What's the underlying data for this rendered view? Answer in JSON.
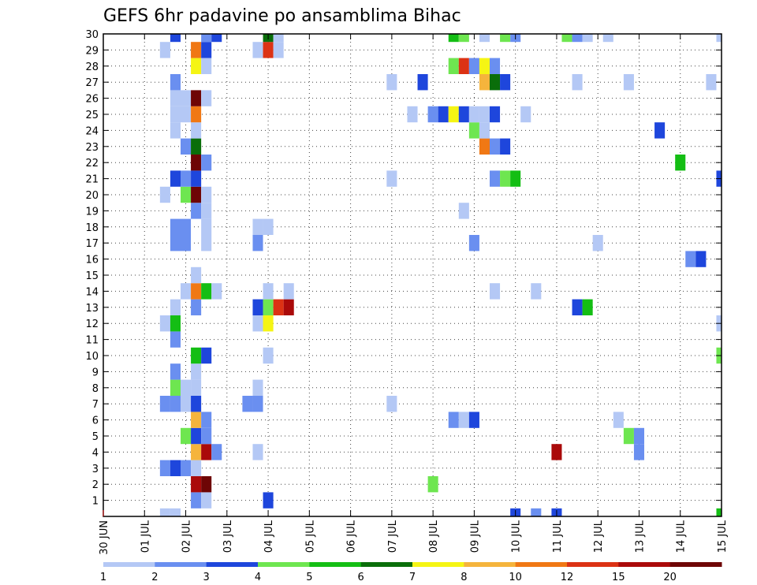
{
  "chart_data": {
    "type": "heatmap",
    "title": "GEFS 6hr padavine po ansamblima Bihac",
    "xlabel": "",
    "ylabel": "",
    "x_tick_labels": [
      "30 JUN",
      "01 JUL",
      "02 JUL",
      "03 JUL",
      "04 JUL",
      "05 JUL",
      "06 JUL",
      "07 JUL",
      "08 JUL",
      "09 JUL",
      "10 JUL",
      "11 JUL",
      "12 JUL",
      "13 JUL",
      "14 JUL",
      "15 JUL"
    ],
    "y_tick_labels": [
      "1",
      "2",
      "3",
      "4",
      "5",
      "6",
      "7",
      "8",
      "9",
      "10",
      "11",
      "12",
      "13",
      "14",
      "15",
      "16",
      "17",
      "18",
      "19",
      "20",
      "21",
      "22",
      "23",
      "24",
      "25",
      "26",
      "27",
      "28",
      "29",
      "30"
    ],
    "x_range_days": [
      0,
      15
    ],
    "members_range": [
      0,
      30
    ],
    "step_hours": 6,
    "grid": true,
    "colorbar": {
      "levels": [
        "1",
        "2",
        "3",
        "4",
        "5",
        "6",
        "7",
        "8",
        "10",
        "12",
        "15",
        "20"
      ],
      "colors": [
        "#b4c8f5",
        "#6a8ff0",
        "#1e46dc",
        "#6ee650",
        "#14be14",
        "#0a6e0a",
        "#f5f514",
        "#f5b43c",
        "#f07814",
        "#dc3214",
        "#aa0a0a",
        "#6e0505"
      ]
    },
    "cells": [
      {
        "t": 1.5,
        "m": 0,
        "c": 1
      },
      {
        "t": 1.75,
        "m": 0,
        "c": 1
      },
      {
        "t": 10.0,
        "m": 0,
        "c": 3
      },
      {
        "t": 10.5,
        "m": 0,
        "c": 2
      },
      {
        "t": 11.0,
        "m": 0,
        "c": 3
      },
      {
        "t": 15.0,
        "m": 0,
        "c": 5
      },
      {
        "t": 2.25,
        "m": 1,
        "c": 2
      },
      {
        "t": 2.5,
        "m": 1,
        "c": 1
      },
      {
        "t": 4.0,
        "m": 1,
        "c": 3
      },
      {
        "t": 2.25,
        "m": 2,
        "c": 11
      },
      {
        "t": 2.5,
        "m": 2,
        "c": 12
      },
      {
        "t": 8.0,
        "m": 2,
        "c": 4
      },
      {
        "t": 1.5,
        "m": 3,
        "c": 2
      },
      {
        "t": 1.75,
        "m": 3,
        "c": 3
      },
      {
        "t": 2.0,
        "m": 3,
        "c": 2
      },
      {
        "t": 2.25,
        "m": 3,
        "c": 1
      },
      {
        "t": 2.25,
        "m": 4,
        "c": 8
      },
      {
        "t": 2.5,
        "m": 4,
        "c": 11
      },
      {
        "t": 2.75,
        "m": 4,
        "c": 2
      },
      {
        "t": 3.75,
        "m": 4,
        "c": 1
      },
      {
        "t": 11.0,
        "m": 4,
        "c": 11
      },
      {
        "t": 13.0,
        "m": 4,
        "c": 2
      },
      {
        "t": 2.0,
        "m": 5,
        "c": 4
      },
      {
        "t": 2.25,
        "m": 5,
        "c": 3
      },
      {
        "t": 2.5,
        "m": 5,
        "c": 2
      },
      {
        "t": 12.75,
        "m": 5,
        "c": 4
      },
      {
        "t": 13.0,
        "m": 5,
        "c": 2
      },
      {
        "t": 2.25,
        "m": 6,
        "c": 8
      },
      {
        "t": 2.5,
        "m": 6,
        "c": 2
      },
      {
        "t": 8.5,
        "m": 6,
        "c": 2
      },
      {
        "t": 8.75,
        "m": 6,
        "c": 1
      },
      {
        "t": 9.0,
        "m": 6,
        "c": 3
      },
      {
        "t": 12.5,
        "m": 6,
        "c": 1
      },
      {
        "t": 1.5,
        "m": 7,
        "c": 2
      },
      {
        "t": 1.75,
        "m": 7,
        "c": 2
      },
      {
        "t": 2.0,
        "m": 7,
        "c": 1
      },
      {
        "t": 2.25,
        "m": 7,
        "c": 3
      },
      {
        "t": 3.5,
        "m": 7,
        "c": 2
      },
      {
        "t": 3.75,
        "m": 7,
        "c": 2
      },
      {
        "t": 7.0,
        "m": 7,
        "c": 1
      },
      {
        "t": 1.75,
        "m": 8,
        "c": 4
      },
      {
        "t": 2.0,
        "m": 8,
        "c": 1
      },
      {
        "t": 2.25,
        "m": 8,
        "c": 1
      },
      {
        "t": 3.75,
        "m": 8,
        "c": 1
      },
      {
        "t": 1.75,
        "m": 9,
        "c": 2
      },
      {
        "t": 2.25,
        "m": 9,
        "c": 1
      },
      {
        "t": 2.25,
        "m": 10,
        "c": 5
      },
      {
        "t": 2.5,
        "m": 10,
        "c": 3
      },
      {
        "t": 4.0,
        "m": 10,
        "c": 1
      },
      {
        "t": 15.0,
        "m": 10,
        "c": 4
      },
      {
        "t": 1.75,
        "m": 11,
        "c": 2
      },
      {
        "t": 1.5,
        "m": 12,
        "c": 1
      },
      {
        "t": 1.75,
        "m": 12,
        "c": 5
      },
      {
        "t": 3.75,
        "m": 12,
        "c": 1
      },
      {
        "t": 4.0,
        "m": 12,
        "c": 7
      },
      {
        "t": 15.0,
        "m": 12,
        "c": 1
      },
      {
        "t": 1.75,
        "m": 13,
        "c": 1
      },
      {
        "t": 2.25,
        "m": 13,
        "c": 2
      },
      {
        "t": 3.75,
        "m": 13,
        "c": 3
      },
      {
        "t": 4.0,
        "m": 13,
        "c": 4
      },
      {
        "t": 4.25,
        "m": 13,
        "c": 10
      },
      {
        "t": 4.5,
        "m": 13,
        "c": 11
      },
      {
        "t": 11.5,
        "m": 13,
        "c": 3
      },
      {
        "t": 11.75,
        "m": 13,
        "c": 5
      },
      {
        "t": 2.0,
        "m": 14,
        "c": 1
      },
      {
        "t": 2.25,
        "m": 14,
        "c": 9
      },
      {
        "t": 2.5,
        "m": 14,
        "c": 5
      },
      {
        "t": 2.75,
        "m": 14,
        "c": 1
      },
      {
        "t": 4.0,
        "m": 14,
        "c": 1
      },
      {
        "t": 4.5,
        "m": 14,
        "c": 1
      },
      {
        "t": 9.5,
        "m": 14,
        "c": 1
      },
      {
        "t": 10.5,
        "m": 14,
        "c": 1
      },
      {
        "t": 2.25,
        "m": 15,
        "c": 1
      },
      {
        "t": 14.25,
        "m": 16,
        "c": 2
      },
      {
        "t": 14.5,
        "m": 16,
        "c": 3
      },
      {
        "t": 1.75,
        "m": 17,
        "c": 2
      },
      {
        "t": 2.0,
        "m": 17,
        "c": 2
      },
      {
        "t": 2.5,
        "m": 17,
        "c": 1
      },
      {
        "t": 3.75,
        "m": 17,
        "c": 2
      },
      {
        "t": 9.0,
        "m": 17,
        "c": 2
      },
      {
        "t": 12.0,
        "m": 17,
        "c": 1
      },
      {
        "t": 1.75,
        "m": 18,
        "c": 2
      },
      {
        "t": 2.0,
        "m": 18,
        "c": 2
      },
      {
        "t": 2.5,
        "m": 18,
        "c": 1
      },
      {
        "t": 3.75,
        "m": 18,
        "c": 1
      },
      {
        "t": 4.0,
        "m": 18,
        "c": 1
      },
      {
        "t": 2.25,
        "m": 19,
        "c": 2
      },
      {
        "t": 2.5,
        "m": 19,
        "c": 1
      },
      {
        "t": 8.75,
        "m": 19,
        "c": 1
      },
      {
        "t": 1.5,
        "m": 20,
        "c": 1
      },
      {
        "t": 2.0,
        "m": 20,
        "c": 4
      },
      {
        "t": 2.25,
        "m": 20,
        "c": 12
      },
      {
        "t": 2.5,
        "m": 20,
        "c": 1
      },
      {
        "t": 1.75,
        "m": 21,
        "c": 3
      },
      {
        "t": 2.0,
        "m": 21,
        "c": 2
      },
      {
        "t": 2.25,
        "m": 21,
        "c": 3
      },
      {
        "t": 7.0,
        "m": 21,
        "c": 1
      },
      {
        "t": 9.5,
        "m": 21,
        "c": 2
      },
      {
        "t": 9.75,
        "m": 21,
        "c": 4
      },
      {
        "t": 10.0,
        "m": 21,
        "c": 5
      },
      {
        "t": 15.0,
        "m": 21,
        "c": 3
      },
      {
        "t": 2.25,
        "m": 22,
        "c": 12
      },
      {
        "t": 2.5,
        "m": 22,
        "c": 2
      },
      {
        "t": 14.0,
        "m": 22,
        "c": 5
      },
      {
        "t": 2.0,
        "m": 23,
        "c": 2
      },
      {
        "t": 2.25,
        "m": 23,
        "c": 6
      },
      {
        "t": 9.25,
        "m": 23,
        "c": 9
      },
      {
        "t": 9.5,
        "m": 23,
        "c": 2
      },
      {
        "t": 9.75,
        "m": 23,
        "c": 3
      },
      {
        "t": 1.75,
        "m": 24,
        "c": 1
      },
      {
        "t": 2.25,
        "m": 24,
        "c": 1
      },
      {
        "t": 9.0,
        "m": 24,
        "c": 4
      },
      {
        "t": 9.25,
        "m": 24,
        "c": 1
      },
      {
        "t": 13.5,
        "m": 24,
        "c": 3
      },
      {
        "t": 1.75,
        "m": 25,
        "c": 1
      },
      {
        "t": 2.0,
        "m": 25,
        "c": 1
      },
      {
        "t": 2.25,
        "m": 25,
        "c": 9
      },
      {
        "t": 7.5,
        "m": 25,
        "c": 1
      },
      {
        "t": 8.0,
        "m": 25,
        "c": 2
      },
      {
        "t": 8.25,
        "m": 25,
        "c": 3
      },
      {
        "t": 8.5,
        "m": 25,
        "c": 7
      },
      {
        "t": 8.75,
        "m": 25,
        "c": 3
      },
      {
        "t": 9.0,
        "m": 25,
        "c": 1
      },
      {
        "t": 9.25,
        "m": 25,
        "c": 1
      },
      {
        "t": 9.5,
        "m": 25,
        "c": 3
      },
      {
        "t": 10.25,
        "m": 25,
        "c": 1
      },
      {
        "t": 1.75,
        "m": 26,
        "c": 1
      },
      {
        "t": 2.0,
        "m": 26,
        "c": 1
      },
      {
        "t": 2.25,
        "m": 26,
        "c": 12
      },
      {
        "t": 2.5,
        "m": 26,
        "c": 1
      },
      {
        "t": 1.75,
        "m": 27,
        "c": 2
      },
      {
        "t": 7.0,
        "m": 27,
        "c": 1
      },
      {
        "t": 7.75,
        "m": 27,
        "c": 3
      },
      {
        "t": 9.25,
        "m": 27,
        "c": 8
      },
      {
        "t": 9.5,
        "m": 27,
        "c": 6
      },
      {
        "t": 9.75,
        "m": 27,
        "c": 3
      },
      {
        "t": 11.5,
        "m": 27,
        "c": 1
      },
      {
        "t": 12.75,
        "m": 27,
        "c": 1
      },
      {
        "t": 14.75,
        "m": 27,
        "c": 1
      },
      {
        "t": 2.25,
        "m": 28,
        "c": 7
      },
      {
        "t": 2.5,
        "m": 28,
        "c": 1
      },
      {
        "t": 8.5,
        "m": 28,
        "c": 4
      },
      {
        "t": 8.75,
        "m": 28,
        "c": 10
      },
      {
        "t": 9.0,
        "m": 28,
        "c": 2
      },
      {
        "t": 9.25,
        "m": 28,
        "c": 7
      },
      {
        "t": 9.5,
        "m": 28,
        "c": 2
      },
      {
        "t": 1.5,
        "m": 29,
        "c": 1
      },
      {
        "t": 2.25,
        "m": 29,
        "c": 9
      },
      {
        "t": 2.5,
        "m": 29,
        "c": 3
      },
      {
        "t": 3.75,
        "m": 29,
        "c": 1
      },
      {
        "t": 4.0,
        "m": 29,
        "c": 10
      },
      {
        "t": 4.25,
        "m": 29,
        "c": 1
      },
      {
        "t": 1.75,
        "m": 30,
        "c": 3
      },
      {
        "t": 2.5,
        "m": 30,
        "c": 2
      },
      {
        "t": 2.75,
        "m": 30,
        "c": 3
      },
      {
        "t": 4.0,
        "m": 30,
        "c": 6
      },
      {
        "t": 4.25,
        "m": 30,
        "c": 1
      },
      {
        "t": 8.5,
        "m": 30,
        "c": 5
      },
      {
        "t": 8.75,
        "m": 30,
        "c": 4
      },
      {
        "t": 9.25,
        "m": 30,
        "c": 1
      },
      {
        "t": 9.75,
        "m": 30,
        "c": 4
      },
      {
        "t": 10.0,
        "m": 30,
        "c": 2
      },
      {
        "t": 11.25,
        "m": 30,
        "c": 4
      },
      {
        "t": 11.5,
        "m": 30,
        "c": 2
      },
      {
        "t": 11.75,
        "m": 30,
        "c": 1
      },
      {
        "t": 12.25,
        "m": 30,
        "c": 1
      },
      {
        "t": 15.0,
        "m": 30,
        "c": 1
      }
    ]
  }
}
